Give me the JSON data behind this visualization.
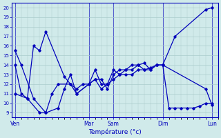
{
  "background_color": "#d0eaea",
  "grid_color": "#aacccc",
  "line_color": "#0000bb",
  "xlabel": "Température (°c)",
  "ylim": [
    8.5,
    20.5
  ],
  "yticks": [
    9,
    10,
    11,
    12,
    13,
    14,
    15,
    16,
    17,
    18,
    19,
    20
  ],
  "day_labels": [
    "Ven",
    "Mar",
    "Sam",
    "Dim",
    "Lun"
  ],
  "day_positions": [
    0,
    12,
    16,
    24,
    32
  ],
  "series1_x": [
    0,
    1,
    3,
    5,
    7,
    8,
    9,
    10,
    12,
    13,
    14,
    15,
    16,
    17,
    18,
    19,
    20,
    21,
    22,
    23,
    24,
    26,
    31,
    32
  ],
  "series1_y": [
    15.5,
    14.0,
    10.5,
    9.0,
    9.5,
    11.5,
    13.0,
    11.0,
    12.0,
    13.5,
    12.0,
    12.0,
    13.5,
    13.0,
    13.5,
    13.5,
    14.0,
    14.2,
    13.5,
    14.0,
    14.0,
    17.0,
    19.8,
    20.0
  ],
  "series2_x": [
    0,
    2,
    4,
    5,
    6,
    7,
    9,
    10,
    12,
    13,
    14,
    15,
    16,
    17,
    18,
    19,
    20,
    21,
    22,
    23,
    24,
    25,
    26,
    27,
    28,
    29,
    30,
    31,
    32
  ],
  "series2_y": [
    11.0,
    10.5,
    9.0,
    9.0,
    11.0,
    12.0,
    12.0,
    11.0,
    12.0,
    12.5,
    11.5,
    12.0,
    12.5,
    13.0,
    13.0,
    13.0,
    13.5,
    13.5,
    13.7,
    14.0,
    14.0,
    9.5,
    9.5,
    9.5,
    9.5,
    9.5,
    9.7,
    10.0,
    10.0
  ],
  "series3_x": [
    0,
    1,
    2,
    3,
    4,
    5,
    8,
    9,
    10,
    11,
    12,
    13,
    14,
    15,
    16,
    17,
    18,
    19,
    20,
    21,
    22,
    23,
    24,
    31,
    32
  ],
  "series3_y": [
    14.0,
    11.0,
    10.5,
    16.0,
    15.5,
    17.5,
    12.8,
    12.0,
    11.5,
    12.0,
    12.0,
    12.5,
    12.5,
    11.5,
    13.0,
    13.5,
    13.5,
    14.0,
    14.0,
    13.5,
    13.5,
    14.0,
    14.0,
    11.5,
    9.8
  ]
}
